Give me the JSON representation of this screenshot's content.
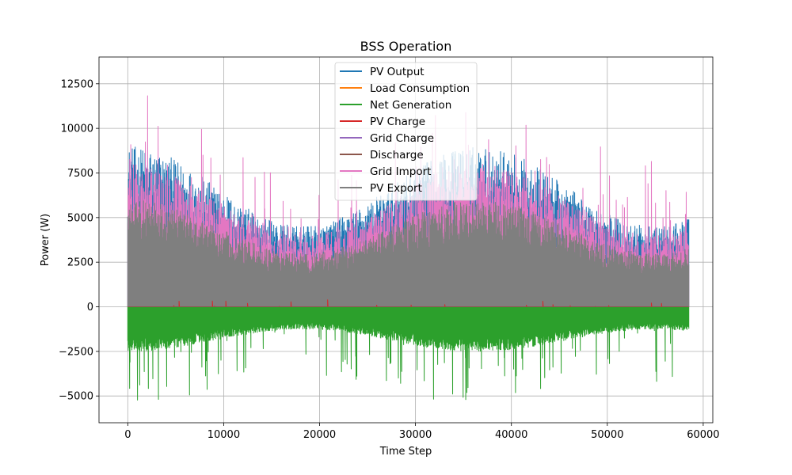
{
  "chart_data": {
    "type": "line",
    "title": "BSS Operation",
    "xlabel": "Time Step",
    "ylabel": "Power (W)",
    "xlim": [
      -3000,
      61000
    ],
    "ylim": [
      -6500,
      14000
    ],
    "xticks": [
      0,
      10000,
      20000,
      30000,
      40000,
      50000,
      60000
    ],
    "yticks": [
      -5000,
      -2500,
      0,
      2500,
      5000,
      7500,
      10000,
      12500
    ],
    "x_max": 58500,
    "grid": true,
    "legend_position": "top-center",
    "series": [
      {
        "name": "PV Output",
        "color": "#1f77b4",
        "typical_max": 9000,
        "peak": 10600
      },
      {
        "name": "Load Consumption",
        "color": "#ff7f0e",
        "typical_max": 0,
        "peak": 0
      },
      {
        "name": "Net Generation",
        "color": "#2ca02c",
        "typical_min": -2500,
        "trough": -5500
      },
      {
        "name": "PV Charge",
        "color": "#d62728",
        "typical_max": 0,
        "peak": 400
      },
      {
        "name": "Grid Charge",
        "color": "#9467bd",
        "typical_max": 0,
        "peak": 0
      },
      {
        "name": "Discharge",
        "color": "#8c564b",
        "typical_max": 0,
        "peak": 0
      },
      {
        "name": "Grid Import",
        "color": "#e377c2",
        "typical_max": 8000,
        "peak": 12600
      },
      {
        "name": "PV Export",
        "color": "#7f7f7f",
        "typical_max": 6000,
        "peak": 7800
      }
    ]
  }
}
